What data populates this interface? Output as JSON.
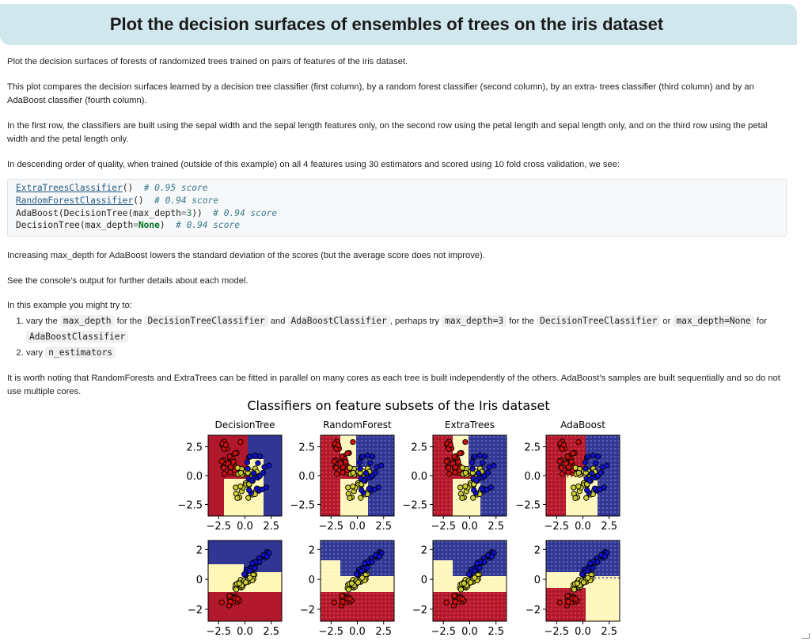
{
  "page_title": "Plot the decision surfaces of ensembles of trees on the iris dataset",
  "intro": "Plot the decision surfaces of forests of randomized trees trained on pairs of features of the iris dataset.",
  "para_compare": "This plot compares the decision surfaces learned by a decision tree classifier (first column), by a random forest classifier (second column), by an extra- trees classifier (third column) and by an AdaBoost classifier (fourth column).",
  "para_rows": "In the first row, the classifiers are built using the sepal width and the sepal length features only, on the second row using the petal length and sepal length only, and on the third row using the petal width and the petal length only.",
  "para_order": "In descending order of quality, when trained (outside of this example) on all 4 features using 30 estimators and scored using 10 fold cross validation, we see:",
  "code": {
    "l1_link": "ExtraTreesClassifier",
    "l1_rest": "()",
    "l1_comment": "# 0.95 score",
    "l2_link": "RandomForestClassifier",
    "l2_rest": "()",
    "l2_comment": "# 0.94 score",
    "l3_a": "AdaBoost(DecisionTree(max_depth",
    "l3_eq": "=",
    "l3_num": "3",
    "l3_b": "))",
    "l3_comment": "# 0.94 score",
    "l4_a": "DecisionTree(max_depth",
    "l4_eq": "=",
    "l4_kw": "None",
    "l4_b": ")",
    "l4_comment": "# 0.94 score"
  },
  "para_adaboost": "Increasing max_depth for AdaBoost lowers the standard deviation of the scores (but the average score does not improve).",
  "para_console": "See the console’s output for further details about each model.",
  "para_try": "In this example you might try to:",
  "list1": {
    "t1": "vary the",
    "c1": "max_depth",
    "t2": "for the",
    "c2": "DecisionTreeClassifier",
    "t3": "and",
    "c3": "AdaBoostClassifier",
    "t4": ", perhaps try",
    "c4": "max_depth=3",
    "t5": "for the",
    "c5": "DecisionTreeClassifier",
    "t6": "or",
    "c6": "max_depth=None",
    "t7": "for",
    "c7": "AdaBoostClassifier"
  },
  "list2": {
    "t1": "vary",
    "c1": "n_estimators"
  },
  "para_parallel": "It is worth noting that RandomForests and ExtraTrees can be fitted in parallel on many cores as each tree is built independently of the others. AdaBoost’s samples are built sequentially and so do not use multiple cores.",
  "chart_data": {
    "type": "scatter",
    "title": "Classifiers on feature subsets of the Iris dataset",
    "columns": [
      "DecisionTree",
      "RandomForest",
      "ExtraTrees",
      "AdaBoost"
    ],
    "rows": [
      {
        "xlim": [
          -3.5,
          3.5
        ],
        "ylim": [
          -3.5,
          3.5
        ],
        "yticks": [
          -2.5,
          0.0,
          2.5
        ],
        "ytick_labels": [
          "−2.5",
          "0.0",
          "2.5"
        ]
      },
      {
        "xlim": [
          -3.5,
          3.5
        ],
        "ylim": [
          -2.8,
          2.6
        ],
        "yticks": [
          -2,
          0,
          2
        ],
        "ytick_labels": [
          "−2",
          "0",
          "2"
        ]
      }
    ],
    "xticks": [
      -2.5,
      0.0,
      2.5
    ],
    "xtick_labels": [
      "−2.5",
      "0.0",
      "2.5"
    ],
    "classes": [
      {
        "color": "#cc1111"
      },
      {
        "color": "#cccc33"
      },
      {
        "color": "#1111cc"
      }
    ],
    "colors": {
      "red_region": "#b2182b",
      "yellow_region": "#fff6b8",
      "blue_region": "#313695"
    }
  }
}
